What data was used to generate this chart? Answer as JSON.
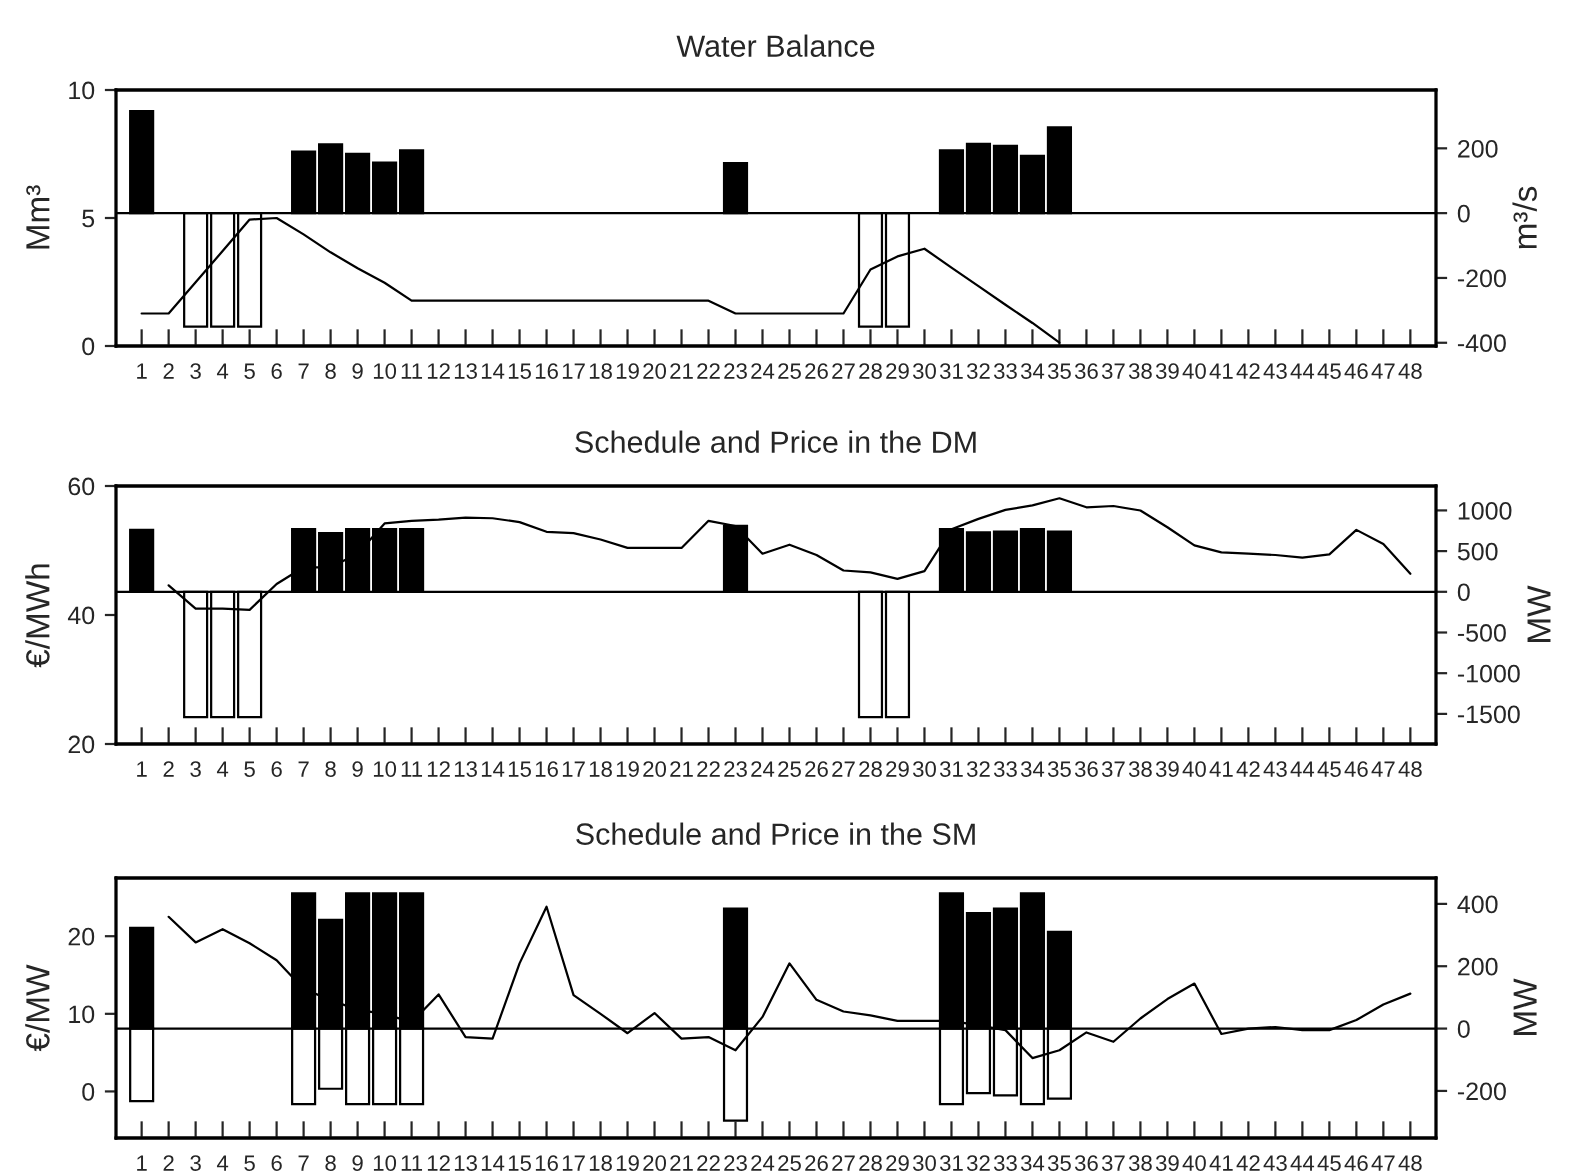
{
  "chart_data": [
    {
      "type": "bar",
      "title": "Water Balance",
      "ylabel": "Mm³",
      "y2label": "m³/s",
      "grid": false,
      "categories": [
        "1",
        "2",
        "3",
        "4",
        "5",
        "6",
        "7",
        "8",
        "9",
        "10",
        "11",
        "12",
        "13",
        "14",
        "15",
        "16",
        "17",
        "18",
        "19",
        "20",
        "21",
        "22",
        "23",
        "24",
        "25",
        "26",
        "27",
        "28",
        "29",
        "30",
        "31",
        "32",
        "33",
        "34",
        "35",
        "36",
        "37",
        "38",
        "39",
        "40",
        "41",
        "42",
        "43",
        "44",
        "45",
        "46",
        "47",
        "48"
      ],
      "series": [
        {
          "type": "line",
          "axis": "y",
          "color": "#000000",
          "values": [
            1.27,
            1.27,
            2.49,
            3.71,
            4.94,
            5.0,
            4.36,
            3.66,
            3.04,
            2.47,
            1.77,
            1.77,
            1.77,
            1.77,
            1.77,
            1.77,
            1.77,
            1.77,
            1.77,
            1.77,
            1.77,
            1.77,
            1.27,
            1.27,
            1.27,
            1.27,
            1.27,
            2.99,
            3.5,
            3.8,
            3.06,
            2.34,
            1.61,
            0.9,
            0.13,
            null,
            null,
            null,
            null,
            null,
            null,
            null,
            null,
            null,
            null,
            null,
            null,
            null
          ]
        },
        {
          "axis": "y2",
          "color": "#000000",
          "values": [
            315,
            null,
            null,
            null,
            null,
            null,
            190,
            212,
            183,
            156,
            194,
            null,
            null,
            null,
            null,
            null,
            null,
            null,
            null,
            null,
            null,
            null,
            154,
            null,
            null,
            null,
            null,
            null,
            null,
            null,
            194,
            214,
            208,
            177,
            265,
            null,
            null,
            null,
            null,
            null,
            null,
            null,
            null,
            null,
            null,
            null,
            null,
            null
          ]
        },
        {
          "axis": "y2",
          "color": "#ffffff",
          "values": [
            null,
            null,
            -350,
            -350,
            -350,
            null,
            null,
            null,
            null,
            null,
            null,
            null,
            null,
            null,
            null,
            null,
            null,
            null,
            null,
            null,
            null,
            null,
            null,
            null,
            null,
            null,
            null,
            -350,
            -350,
            null,
            null,
            null,
            null,
            null,
            null,
            null,
            null,
            null,
            null,
            null,
            null,
            null,
            null,
            null,
            null,
            null,
            null,
            null
          ]
        }
      ],
      "ylim": [
        0,
        10
      ],
      "yticks": [
        0,
        5,
        10
      ],
      "y2lim": [
        -410,
        380
      ],
      "y2ticks": [
        -400,
        -200,
        0,
        200
      ],
      "ref_lines": [
        {
          "axis": "y2",
          "value": 0,
          "color": "#000000"
        }
      ]
    },
    {
      "type": "bar",
      "title": "Schedule and Price in the DM",
      "ylabel": "€/MWh",
      "y2label": "MW",
      "grid": false,
      "categories": [
        "1",
        "2",
        "3",
        "4",
        "5",
        "6",
        "7",
        "8",
        "9",
        "10",
        "11",
        "12",
        "13",
        "14",
        "15",
        "16",
        "17",
        "18",
        "19",
        "20",
        "21",
        "22",
        "23",
        "24",
        "25",
        "26",
        "27",
        "28",
        "29",
        "30",
        "31",
        "32",
        "33",
        "34",
        "35",
        "36",
        "37",
        "38",
        "39",
        "40",
        "41",
        "42",
        "43",
        "44",
        "45",
        "46",
        "47",
        "48"
      ],
      "series": [
        {
          "type": "line",
          "axis": "y",
          "color": "#000000",
          "values": [
            null,
            44.6,
            41.0,
            41.0,
            40.8,
            44.8,
            47.4,
            47.4,
            49.5,
            54.2,
            54.6,
            54.8,
            55.1,
            55.0,
            54.4,
            52.9,
            52.7,
            51.7,
            50.4,
            50.4,
            50.4,
            54.6,
            53.8,
            49.5,
            50.9,
            49.3,
            46.9,
            46.6,
            45.6,
            46.8,
            53.3,
            54.9,
            56.3,
            57.0,
            58.1,
            56.7,
            56.9,
            56.2,
            53.6,
            50.8,
            49.7,
            49.5,
            49.3,
            48.9,
            49.4,
            53.2,
            51.0,
            46.4
          ]
        },
        {
          "axis": "y2",
          "color": "#000000",
          "values": [
            760,
            null,
            null,
            null,
            null,
            null,
            770,
            720,
            770,
            770,
            770,
            null,
            null,
            null,
            null,
            null,
            null,
            null,
            null,
            null,
            null,
            null,
            810,
            null,
            null,
            null,
            null,
            null,
            null,
            null,
            770,
            730,
            740,
            770,
            740,
            null,
            null,
            null,
            null,
            null,
            null,
            null,
            null,
            null,
            null,
            null,
            null,
            null
          ]
        },
        {
          "axis": "y2",
          "color": "#ffffff",
          "values": [
            null,
            null,
            -1540,
            -1540,
            -1540,
            null,
            null,
            null,
            null,
            null,
            null,
            null,
            null,
            null,
            null,
            null,
            null,
            null,
            null,
            null,
            null,
            null,
            null,
            null,
            null,
            null,
            null,
            -1540,
            -1540,
            null,
            null,
            null,
            null,
            null,
            null,
            null,
            null,
            null,
            null,
            null,
            null,
            null,
            null,
            null,
            null,
            null,
            null,
            null
          ]
        }
      ],
      "ylim": [
        20,
        60
      ],
      "yticks": [
        20,
        40,
        60
      ],
      "y2lim": [
        -1870,
        1300
      ],
      "y2ticks": [
        -1500,
        -1000,
        -500,
        0,
        500,
        1000
      ],
      "ref_lines": [
        {
          "axis": "y2",
          "value": 0,
          "color": "#000000"
        }
      ]
    },
    {
      "type": "bar",
      "title": "Schedule and Price in the SM",
      "ylabel": "€/MW",
      "y2label": "MW",
      "grid": false,
      "categories": [
        "1",
        "2",
        "3",
        "4",
        "5",
        "6",
        "7",
        "8",
        "9",
        "10",
        "11",
        "12",
        "13",
        "14",
        "15",
        "16",
        "17",
        "18",
        "19",
        "20",
        "21",
        "22",
        "23",
        "24",
        "25",
        "26",
        "27",
        "28",
        "29",
        "30",
        "31",
        "32",
        "33",
        "34",
        "35",
        "36",
        "37",
        "38",
        "39",
        "40",
        "41",
        "42",
        "43",
        "44",
        "45",
        "46",
        "47",
        "48"
      ],
      "series": [
        {
          "type": "line",
          "axis": "y",
          "color": "#000000",
          "values": [
            null,
            22.5,
            19.2,
            20.9,
            19.1,
            16.9,
            13.2,
            11.8,
            10.5,
            10.0,
            8.9,
            12.5,
            7.0,
            6.8,
            16.5,
            23.8,
            12.4,
            10.0,
            7.5,
            10.1,
            6.8,
            7.0,
            5.3,
            9.6,
            16.5,
            11.8,
            10.3,
            9.8,
            9.1,
            9.1,
            9.1,
            8.5,
            7.9,
            4.3,
            5.3,
            7.6,
            6.4,
            9.4,
            11.9,
            13.9,
            7.4,
            8.1,
            8.3,
            7.9,
            7.9,
            9.2,
            11.2,
            12.6
          ]
        },
        {
          "axis": "y2",
          "color": "#000000",
          "values": [
            323,
            null,
            null,
            null,
            null,
            null,
            434,
            349,
            434,
            434,
            434,
            null,
            null,
            null,
            null,
            null,
            null,
            null,
            null,
            null,
            null,
            null,
            385,
            null,
            null,
            null,
            null,
            null,
            null,
            null,
            434,
            370,
            385,
            434,
            310,
            null,
            null,
            null,
            null,
            null,
            null,
            null,
            null,
            null,
            null,
            null,
            null,
            null
          ]
        },
        {
          "axis": "y2",
          "color": "#ffffff",
          "values": [
            -233,
            null,
            null,
            null,
            null,
            null,
            -242,
            -193,
            -242,
            -242,
            -242,
            null,
            null,
            null,
            null,
            null,
            null,
            null,
            null,
            null,
            null,
            null,
            -295,
            null,
            null,
            null,
            null,
            null,
            null,
            null,
            -242,
            -207,
            -214,
            -242,
            -225,
            null,
            null,
            null,
            null,
            null,
            null,
            null,
            null,
            null,
            null,
            null,
            null,
            null
          ]
        }
      ],
      "ylim": [
        -6,
        27.5
      ],
      "yticks": [
        0,
        10,
        20
      ],
      "y2lim": [
        -351,
        483
      ],
      "y2ticks": [
        -200,
        0,
        200,
        400
      ],
      "ref_lines": [
        {
          "axis": "y2",
          "value": 0,
          "color": "#000000"
        }
      ]
    }
  ]
}
